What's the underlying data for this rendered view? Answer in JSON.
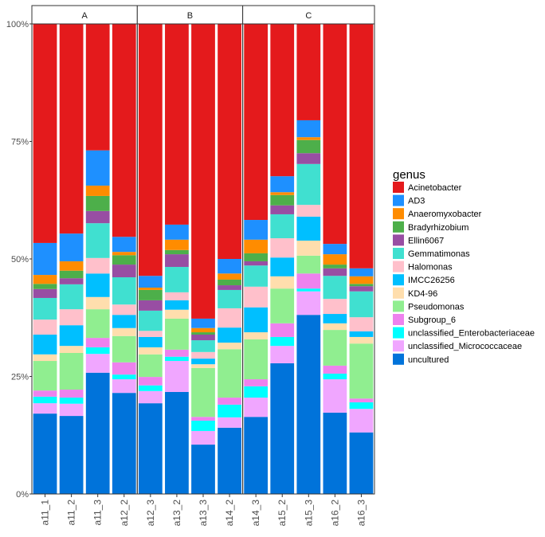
{
  "chart_data": {
    "type": "bar",
    "stacked": true,
    "normalized": true,
    "title": "",
    "xlabel": "",
    "ylabel": "",
    "ylim": [
      0,
      100
    ],
    "y_tick_labels": [
      "0%",
      "25%",
      "50%",
      "75%",
      "100%"
    ],
    "y_ticks": [
      0,
      25,
      50,
      75,
      100
    ],
    "legend": {
      "title": "genus",
      "position": "right"
    },
    "facets": [
      {
        "label": "A",
        "categories": [
          "a11_1",
          "a11_2",
          "a11_3",
          "a12_2"
        ]
      },
      {
        "label": "B",
        "categories": [
          "a12_3",
          "a13_2",
          "a13_3",
          "a14_2"
        ]
      },
      {
        "label": "C",
        "categories": [
          "a14_3",
          "a15_2",
          "a15_3",
          "a16_2",
          "a16_3"
        ]
      }
    ],
    "categories": [
      "a11_1",
      "a11_2",
      "a11_3",
      "a12_2",
      "a12_3",
      "a13_2",
      "a13_3",
      "a14_2",
      "a14_3",
      "a15_2",
      "a15_3",
      "a16_2",
      "a16_3"
    ],
    "series": [
      {
        "name": "Acinetobacter",
        "color": "#E41A1C",
        "values": [
          46.6,
          44.6,
          26.9,
          45.3,
          53.6,
          42.7,
          62.7,
          50.0,
          41.7,
          32.4,
          20.5,
          46.8,
          52.0
        ]
      },
      {
        "name": "AD3",
        "color": "#1E90FF",
        "values": [
          6.8,
          5.9,
          7.5,
          3.2,
          2.5,
          3.2,
          2.0,
          3.1,
          4.2,
          3.4,
          3.6,
          2.2,
          1.7
        ]
      },
      {
        "name": "Anaeromyxobacter",
        "color": "#FF8C00",
        "values": [
          1.9,
          2.0,
          2.2,
          0.7,
          0.5,
          2.2,
          0.9,
          1.3,
          2.9,
          0.6,
          0.6,
          2.2,
          1.6
        ]
      },
      {
        "name": "Bradyrhizobium",
        "color": "#4DAF4A",
        "values": [
          1.1,
          1.6,
          3.2,
          2.0,
          2.2,
          0.9,
          0.5,
          1.2,
          1.7,
          2.2,
          2.8,
          0.8,
          0.5
        ]
      },
      {
        "name": "Ellin6067",
        "color": "#984EA3",
        "values": [
          1.9,
          1.3,
          2.6,
          2.7,
          2.2,
          2.7,
          1.2,
          1.0,
          0.9,
          1.9,
          2.3,
          1.6,
          1.1
        ]
      },
      {
        "name": "Gemmatimonas",
        "color": "#40E0D0",
        "values": [
          4.6,
          5.3,
          7.4,
          5.8,
          4.3,
          5.4,
          2.5,
          3.9,
          4.5,
          5.1,
          8.7,
          4.9,
          5.5
        ]
      },
      {
        "name": "Halomonas",
        "color": "#FFC0CB",
        "values": [
          3.2,
          3.4,
          3.3,
          2.2,
          1.3,
          1.7,
          1.4,
          4.1,
          4.4,
          4.1,
          2.5,
          3.2,
          3.0
        ]
      },
      {
        "name": "IMCC26256",
        "color": "#00BFFF",
        "values": [
          4.2,
          4.4,
          5.0,
          2.8,
          2.2,
          2.0,
          1.2,
          3.2,
          5.3,
          4.0,
          5.1,
          2.0,
          1.2
        ]
      },
      {
        "name": "KD4-96",
        "color": "#FFDEAD",
        "values": [
          1.4,
          1.5,
          2.6,
          1.7,
          1.5,
          1.9,
          0.8,
          1.4,
          1.5,
          2.6,
          3.2,
          1.4,
          1.4
        ]
      },
      {
        "name": "Pseudomonas",
        "color": "#90EE90",
        "values": [
          6.3,
          7.8,
          6.1,
          5.6,
          4.8,
          6.6,
          10.4,
          10.3,
          8.5,
          7.4,
          3.8,
          7.6,
          11.7
        ]
      },
      {
        "name": "Subgroup_6",
        "color": "#EE82EE",
        "values": [
          1.3,
          1.7,
          2.0,
          2.6,
          1.8,
          1.5,
          0.8,
          1.5,
          1.5,
          2.9,
          3.2,
          1.7,
          0.8
        ]
      },
      {
        "name": "unclassified_Enterobacteriaceae",
        "color": "#00FFFF",
        "values": [
          1.4,
          1.3,
          1.4,
          1.0,
          1.2,
          0.9,
          2.2,
          2.7,
          2.4,
          1.9,
          0.6,
          1.2,
          1.4
        ]
      },
      {
        "name": "unclassified_Micrococcaceae",
        "color": "#F0A6FF",
        "values": [
          2.2,
          2.6,
          4.0,
          2.9,
          2.6,
          6.6,
          2.9,
          2.2,
          4.1,
          3.7,
          5.0,
          7.1,
          5.0
        ]
      },
      {
        "name": "uncultured",
        "color": "#0073DA",
        "values": [
          17.1,
          16.6,
          25.8,
          21.5,
          19.3,
          21.7,
          10.5,
          14.1,
          16.4,
          27.8,
          38.1,
          17.3,
          13.1
        ]
      }
    ]
  }
}
